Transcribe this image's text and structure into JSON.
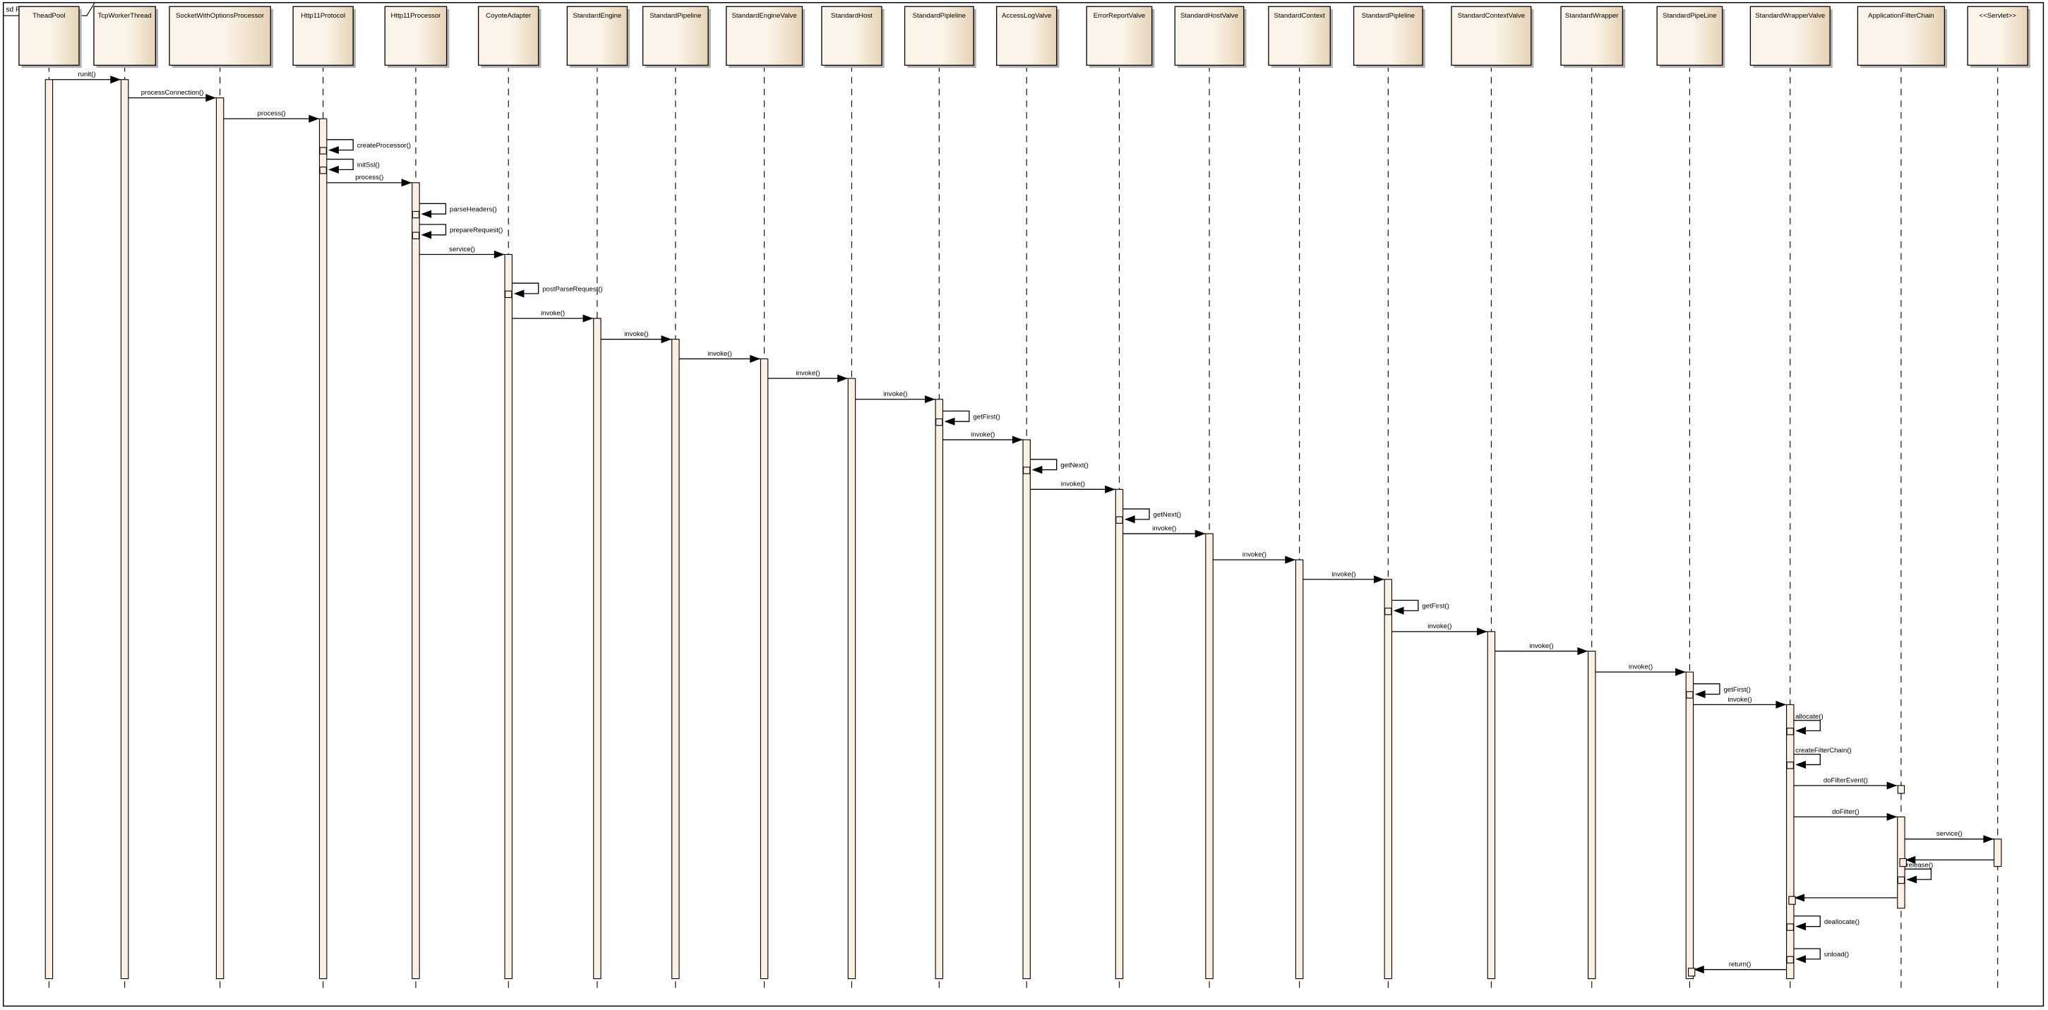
{
  "frame": {
    "title": "sd RequestProcess"
  },
  "colors": {
    "box_light": "#fcf4e8",
    "box_dark": "#e6d3b6",
    "activation": "#fbf0e2",
    "shadow": "#b0b0b0",
    "line": "#000000"
  },
  "lifelines": [
    "TheadPool",
    "TcpWorkerThread",
    "SocketWithOptionsProcessor",
    "Http11Protocol",
    "Http11Processor",
    "CoyoteAdapter",
    "StandardEngine",
    "StandardPipeline",
    "StandardEngineValve",
    "StandardHost",
    "StandardPipleline",
    "AccessLogValve",
    "ErrorReportValve",
    "StandardHostValve",
    "StandardContext",
    "StandardPipleline",
    "StandardContextValve",
    "StandardWrapper",
    "StandardPipeLine",
    "StandardWrapperValve",
    "ApplicationFilterChain",
    "<<Servlet>>"
  ],
  "messages": [
    {
      "from": 0,
      "to": 1,
      "label": "runit()"
    },
    {
      "from": 1,
      "to": 2,
      "label": "processConnection()"
    },
    {
      "from": 2,
      "to": 3,
      "label": "process()"
    },
    {
      "from": 3,
      "to": 3,
      "label": "createProcessor()"
    },
    {
      "from": 3,
      "to": 3,
      "label": "initSsl()"
    },
    {
      "from": 3,
      "to": 4,
      "label": "process()"
    },
    {
      "from": 4,
      "to": 4,
      "label": "parseHeaders()"
    },
    {
      "from": 4,
      "to": 4,
      "label": "prepareRequest()"
    },
    {
      "from": 4,
      "to": 5,
      "label": "service()"
    },
    {
      "from": 5,
      "to": 5,
      "label": "postParseRequest()"
    },
    {
      "from": 5,
      "to": 6,
      "label": "invoke()"
    },
    {
      "from": 6,
      "to": 7,
      "label": "invoke()"
    },
    {
      "from": 7,
      "to": 8,
      "label": "invoke()"
    },
    {
      "from": 8,
      "to": 9,
      "label": "invoke()"
    },
    {
      "from": 9,
      "to": 10,
      "label": "invoke()"
    },
    {
      "from": 10,
      "to": 10,
      "label": "getFirst()"
    },
    {
      "from": 10,
      "to": 11,
      "label": "invoke()"
    },
    {
      "from": 11,
      "to": 11,
      "label": "getNext()"
    },
    {
      "from": 11,
      "to": 12,
      "label": "invoke()"
    },
    {
      "from": 12,
      "to": 12,
      "label": "getNext()"
    },
    {
      "from": 12,
      "to": 13,
      "label": "invoke()"
    },
    {
      "from": 13,
      "to": 14,
      "label": "invoke()"
    },
    {
      "from": 14,
      "to": 15,
      "label": "invoke()"
    },
    {
      "from": 15,
      "to": 15,
      "label": "getFirst()"
    },
    {
      "from": 15,
      "to": 16,
      "label": "invoke()"
    },
    {
      "from": 16,
      "to": 17,
      "label": "invoke()"
    },
    {
      "from": 17,
      "to": 18,
      "label": "invoke()"
    },
    {
      "from": 18,
      "to": 18,
      "label": "getFirst()"
    },
    {
      "from": 18,
      "to": 19,
      "label": "invoke()"
    },
    {
      "from": 19,
      "to": 19,
      "label": "allocate()"
    },
    {
      "from": 19,
      "to": 19,
      "label": "createFilterChain()"
    },
    {
      "from": 19,
      "to": 20,
      "label": "doFilterEvent()"
    },
    {
      "from": 19,
      "to": 20,
      "label": "doFilter()"
    },
    {
      "from": 20,
      "to": 21,
      "label": "service()"
    },
    {
      "from": 21,
      "to": 20,
      "label": ""
    },
    {
      "from": 20,
      "to": 20,
      "label": "release()"
    },
    {
      "from": 20,
      "to": 19,
      "label": ""
    },
    {
      "from": 19,
      "to": 19,
      "label": "deallocate()"
    },
    {
      "from": 19,
      "to": 19,
      "label": "unload()"
    },
    {
      "from": 19,
      "to": 18,
      "label": "return()"
    }
  ]
}
